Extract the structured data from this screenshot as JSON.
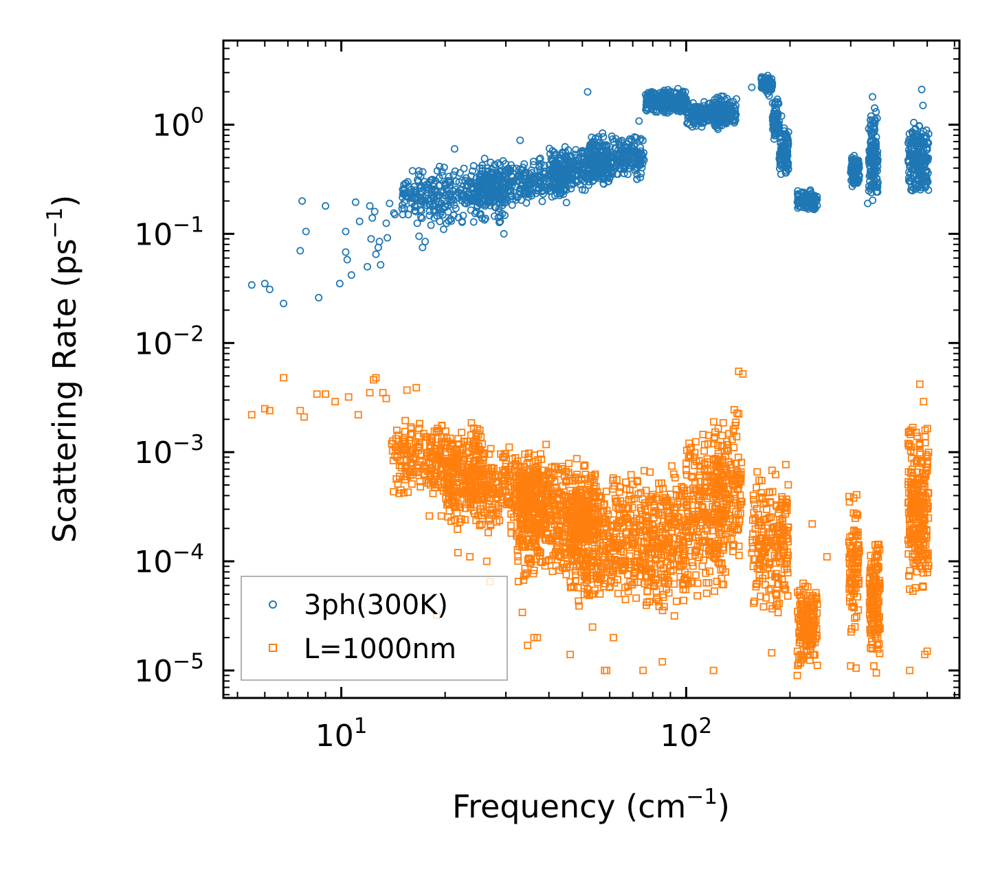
{
  "chart_data": {
    "type": "scatter",
    "title": "",
    "xlabel": {
      "base": "Frequency (cm",
      "sup": "−1",
      "tail": ")"
    },
    "ylabel": {
      "base": "Scattering Rate (ps",
      "sup": "−1",
      "tail": ")"
    },
    "xscale": "log",
    "yscale": "log",
    "xlim": [
      4.55,
      620
    ],
    "ylim": [
      5.6e-06,
      5.9
    ],
    "xticks": [
      {
        "value": 10,
        "base": "10",
        "exp": "1"
      },
      {
        "value": 100,
        "base": "10",
        "exp": "2"
      }
    ],
    "yticks": [
      {
        "value": 1,
        "base": "10",
        "exp": "0"
      },
      {
        "value": 0.1,
        "base": "10",
        "exp": "−1"
      },
      {
        "value": 0.01,
        "base": "10",
        "exp": "−2"
      },
      {
        "value": 0.001,
        "base": "10",
        "exp": "−3"
      },
      {
        "value": 0.0001,
        "base": "10",
        "exp": "−4"
      },
      {
        "value": 1e-05,
        "base": "10",
        "exp": "−5"
      }
    ],
    "grid": false,
    "legend_position": "bottom-left",
    "series": [
      {
        "name": "3ph(300K)",
        "marker": "circle",
        "color": "#1f77b4",
        "points": [
          [
            5.5,
            0.034
          ],
          [
            6.0,
            0.035
          ],
          [
            6.2,
            0.031
          ],
          [
            6.8,
            0.023
          ],
          [
            7.6,
            0.07
          ],
          [
            7.7,
            0.2
          ],
          [
            7.9,
            0.105
          ],
          [
            8.6,
            0.026
          ],
          [
            9.0,
            0.18
          ],
          [
            9.9,
            0.035
          ],
          [
            10.3,
            0.105
          ],
          [
            10.3,
            0.068
          ],
          [
            10.4,
            0.058
          ],
          [
            10.7,
            0.042
          ],
          [
            11.0,
            0.195
          ],
          [
            11.3,
            0.13
          ],
          [
            11.9,
            0.05
          ],
          [
            12.1,
            0.18
          ],
          [
            12.2,
            0.09
          ],
          [
            12.3,
            0.14
          ],
          [
            12.5,
            0.16
          ],
          [
            12.6,
            0.065
          ],
          [
            12.8,
            0.075
          ],
          [
            12.9,
            0.085
          ],
          [
            13.0,
            0.052
          ],
          [
            13.5,
            0.125
          ],
          [
            13.6,
            0.092
          ],
          [
            13.8,
            0.19
          ],
          [
            14.2,
            0.155
          ],
          [
            14.3,
            0.15
          ],
          [
            15.0,
            0.17
          ],
          [
            15.5,
            0.22
          ],
          [
            15.8,
            0.23
          ],
          [
            16.3,
            0.18
          ],
          [
            16.6,
            0.125
          ],
          [
            16.8,
            0.095
          ],
          [
            17.2,
            0.075
          ],
          [
            17.5,
            0.085
          ],
          [
            18.2,
            0.12
          ],
          [
            18.6,
            0.14
          ],
          [
            19.3,
            0.13
          ],
          [
            19.8,
            0.11
          ],
          [
            20.2,
            0.125
          ],
          [
            21.3,
            0.6
          ],
          [
            22.4,
            0.13
          ],
          [
            24.2,
            0.42
          ],
          [
            25.2,
            0.15
          ],
          [
            28.9,
            0.13
          ],
          [
            29.6,
            0.1
          ],
          [
            30.8,
            0.37
          ],
          [
            33.0,
            0.72
          ],
          [
            37.5,
            0.48
          ],
          [
            44.8,
            0.52
          ],
          [
            51.8,
            2.0
          ],
          [
            53.4,
            0.33
          ],
          [
            55.5,
            0.74
          ],
          [
            59.8,
            0.42
          ],
          [
            65.3,
            0.6
          ],
          [
            71.0,
            0.38
          ],
          [
            73.0,
            1.08
          ],
          [
            116.0,
            1.55
          ],
          [
            121.0,
            1.7
          ],
          [
            139.0,
            1.1
          ],
          [
            155.0,
            2.2
          ],
          [
            181.0,
            0.95
          ],
          [
            189.0,
            1.2
          ],
          [
            214.0,
            0.18
          ],
          [
            232.0,
            0.22
          ],
          [
            307.0,
            0.52
          ],
          [
            336.0,
            0.19
          ],
          [
            347.0,
            1.8
          ],
          [
            352.0,
            1.42
          ],
          [
            460.0,
            0.9
          ],
          [
            472.0,
            0.27
          ],
          [
            482.0,
            2.1
          ],
          [
            486.0,
            1.5
          ],
          [
            502.0,
            0.3
          ]
        ],
        "clusters": [
          {
            "x": [
              15,
              30
            ],
            "y": [
              0.12,
              0.42
            ],
            "n": 320
          },
          {
            "x": [
              25,
              45
            ],
            "y": [
              0.18,
              0.5
            ],
            "n": 320
          },
          {
            "x": [
              40,
              60
            ],
            "y": [
              0.25,
              0.65
            ],
            "n": 260
          },
          {
            "x": [
              52,
              76
            ],
            "y": [
              0.3,
              0.85
            ],
            "n": 260
          },
          {
            "x": [
              76,
              100
            ],
            "y": [
              1.25,
              2.15
            ],
            "n": 260
          },
          {
            "x": [
              100,
              135
            ],
            "y": [
              0.9,
              1.7
            ],
            "n": 200
          },
          {
            "x": [
              120,
              140
            ],
            "y": [
              0.9,
              1.9
            ],
            "n": 90
          },
          {
            "x": [
              165,
              178
            ],
            "y": [
              1.8,
              2.9
            ],
            "n": 80
          },
          {
            "x": [
              178,
              186
            ],
            "y": [
              0.7,
              1.8
            ],
            "n": 60
          },
          {
            "x": [
              186,
              198
            ],
            "y": [
              0.32,
              1.0
            ],
            "n": 90
          },
          {
            "x": [
              210,
              240
            ],
            "y": [
              0.16,
              0.26
            ],
            "n": 90
          },
          {
            "x": [
              300,
              318
            ],
            "y": [
              0.26,
              0.52
            ],
            "n": 80
          },
          {
            "x": [
              338,
              360
            ],
            "y": [
              0.2,
              1.45
            ],
            "n": 130
          },
          {
            "x": [
              440,
              505
            ],
            "y": [
              0.22,
              1.1
            ],
            "n": 200
          }
        ]
      },
      {
        "name": "L=1000nm",
        "marker": "square",
        "color": "#ff7f0e",
        "points": [
          [
            5.5,
            0.0022
          ],
          [
            6.0,
            0.0025
          ],
          [
            6.2,
            0.0024
          ],
          [
            6.8,
            0.0048
          ],
          [
            7.6,
            0.0024
          ],
          [
            7.8,
            0.0021
          ],
          [
            8.5,
            0.0034
          ],
          [
            9.0,
            0.0034
          ],
          [
            9.6,
            0.0029
          ],
          [
            10.5,
            0.0032
          ],
          [
            11.2,
            0.0022
          ],
          [
            12.1,
            0.0035
          ],
          [
            12.4,
            0.0046
          ],
          [
            12.6,
            0.0048
          ],
          [
            13.2,
            0.0035
          ],
          [
            13.5,
            0.0031
          ],
          [
            14.0,
            0.0012
          ],
          [
            15.5,
            0.0037
          ],
          [
            16.5,
            0.0039
          ],
          [
            18.0,
            0.00026
          ],
          [
            18.9,
            3.2e-05
          ],
          [
            19.5,
            0.00026
          ],
          [
            21.8,
            0.00012
          ],
          [
            23.6,
            0.00011
          ],
          [
            26.4,
            0.0001
          ],
          [
            27.0,
            6.5e-05
          ],
          [
            33.5,
            3.4e-05
          ],
          [
            34.7,
            1.7e-05
          ],
          [
            36.2,
            2e-05
          ],
          [
            37.0,
            2e-05
          ],
          [
            46.1,
            1.4e-05
          ],
          [
            48.9,
            3.9e-05
          ],
          [
            53.5,
            2.5e-05
          ],
          [
            58.0,
            1e-05
          ],
          [
            58.8,
            1e-05
          ],
          [
            61.5,
            2e-05
          ],
          [
            75.0,
            1e-05
          ],
          [
            85.3,
            1.2e-05
          ],
          [
            120.0,
            1e-05
          ],
          [
            142.0,
            0.0055
          ],
          [
            146.0,
            0.0052
          ],
          [
            177.0,
            1.45e-05
          ],
          [
            210.0,
            9e-06
          ],
          [
            232.0,
            0.00022
          ],
          [
            256.0,
            0.00011
          ],
          [
            300.0,
            1.1e-05
          ],
          [
            311.0,
            1.05e-05
          ],
          [
            350.0,
            1.1e-05
          ],
          [
            356.0,
            9.5e-06
          ],
          [
            445.0,
            1e-05
          ],
          [
            476.0,
            0.0042
          ],
          [
            488.0,
            0.0029
          ],
          [
            492.0,
            1.4e-05
          ],
          [
            500.0,
            1.5e-05
          ]
        ],
        "clusters": [
          {
            "x": [
              14,
              26
            ],
            "y": [
              0.00035,
              0.002
            ],
            "n": 320
          },
          {
            "x": [
              20,
              40
            ],
            "y": [
              0.00018,
              0.0012
            ],
            "n": 420
          },
          {
            "x": [
              32,
              55
            ],
            "y": [
              6e-05,
              0.0009
            ],
            "n": 520
          },
          {
            "x": [
              45,
              75
            ],
            "y": [
              4e-05,
              0.0007
            ],
            "n": 420
          },
          {
            "x": [
              75,
              100
            ],
            "y": [
              3e-05,
              0.0009
            ],
            "n": 260
          },
          {
            "x": [
              100,
              130
            ],
            "y": [
              4e-05,
              0.0018
            ],
            "n": 260
          },
          {
            "x": [
              120,
              145
            ],
            "y": [
              8e-05,
              0.003
            ],
            "n": 150
          },
          {
            "x": [
              155,
              180
            ],
            "y": [
              3e-05,
              0.0008
            ],
            "n": 110
          },
          {
            "x": [
              180,
              198
            ],
            "y": [
              3e-05,
              0.0009
            ],
            "n": 100
          },
          {
            "x": [
              210,
              240
            ],
            "y": [
              1e-05,
              8e-05
            ],
            "n": 150
          },
          {
            "x": [
              296,
              318
            ],
            "y": [
              2e-05,
              0.0005
            ],
            "n": 100
          },
          {
            "x": [
              340,
              365
            ],
            "y": [
              1.2e-05,
              0.00018
            ],
            "n": 150
          },
          {
            "x": [
              440,
              505
            ],
            "y": [
              4e-05,
              0.002
            ],
            "n": 260
          }
        ]
      }
    ]
  }
}
